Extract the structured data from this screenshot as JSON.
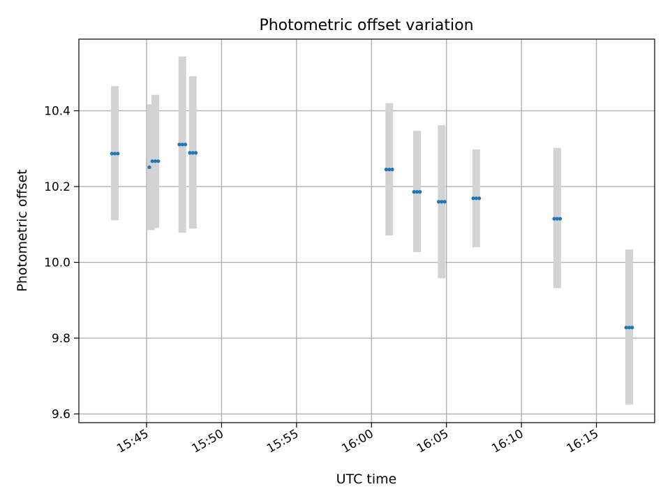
{
  "chart_data": {
    "type": "scatter",
    "title": "Photometric offset variation",
    "xlabel": "UTC time",
    "ylabel": "Photometric offset",
    "grid": true,
    "xlim": [
      "15:40:29",
      "16:18:53"
    ],
    "ylim": [
      9.577,
      10.589
    ],
    "xticks": [
      "15:45",
      "15:50",
      "15:55",
      "16:00",
      "16:05",
      "16:10",
      "16:15"
    ],
    "yticks": [
      9.6,
      9.8,
      10.0,
      10.2,
      10.4
    ],
    "ytick_labels": [
      "9.6",
      "9.8",
      "10.0",
      "10.2",
      "10.4"
    ],
    "colors": {
      "points": "#1f77b4",
      "error_bars": "#d3d3d3",
      "grid": "#b0b0b0"
    },
    "series": [
      {
        "error_bars": [
          {
            "x": "15:42:53",
            "low": 10.111,
            "high": 10.465
          },
          {
            "x": "15:45:17",
            "low": 10.085,
            "high": 10.417
          },
          {
            "x": "15:45:35",
            "low": 10.091,
            "high": 10.442
          },
          {
            "x": "15:47:23",
            "low": 10.078,
            "high": 10.543
          },
          {
            "x": "15:48:05",
            "low": 10.089,
            "high": 10.491
          },
          {
            "x": "16:01:11",
            "low": 10.071,
            "high": 10.42
          },
          {
            "x": "16:03:02",
            "low": 10.027,
            "high": 10.347
          },
          {
            "x": "16:04:41",
            "low": 9.958,
            "high": 10.362
          },
          {
            "x": "16:06:59",
            "low": 10.04,
            "high": 10.298
          },
          {
            "x": "16:12:23",
            "low": 9.932,
            "high": 10.302
          },
          {
            "x": "16:17:11",
            "low": 9.625,
            "high": 10.034
          }
        ],
        "points": [
          {
            "x": "15:42:41",
            "y": 10.287
          },
          {
            "x": "15:42:53",
            "y": 10.287
          },
          {
            "x": "15:43:05",
            "y": 10.287
          },
          {
            "x": "15:45:11",
            "y": 10.251
          },
          {
            "x": "15:45:23",
            "y": 10.267
          },
          {
            "x": "15:45:35",
            "y": 10.267
          },
          {
            "x": "15:45:47",
            "y": 10.267
          },
          {
            "x": "15:47:11",
            "y": 10.311
          },
          {
            "x": "15:47:23",
            "y": 10.311
          },
          {
            "x": "15:47:35",
            "y": 10.311
          },
          {
            "x": "15:47:53",
            "y": 10.289
          },
          {
            "x": "15:48:05",
            "y": 10.289
          },
          {
            "x": "15:48:17",
            "y": 10.289
          },
          {
            "x": "16:00:59",
            "y": 10.245
          },
          {
            "x": "16:01:11",
            "y": 10.245
          },
          {
            "x": "16:01:23",
            "y": 10.245
          },
          {
            "x": "16:02:50",
            "y": 10.186
          },
          {
            "x": "16:03:02",
            "y": 10.186
          },
          {
            "x": "16:03:14",
            "y": 10.186
          },
          {
            "x": "16:04:29",
            "y": 10.16
          },
          {
            "x": "16:04:41",
            "y": 10.16
          },
          {
            "x": "16:04:53",
            "y": 10.16
          },
          {
            "x": "16:06:47",
            "y": 10.169
          },
          {
            "x": "16:06:59",
            "y": 10.169
          },
          {
            "x": "16:07:11",
            "y": 10.169
          },
          {
            "x": "16:12:11",
            "y": 10.115
          },
          {
            "x": "16:12:23",
            "y": 10.115
          },
          {
            "x": "16:12:35",
            "y": 10.115
          },
          {
            "x": "16:16:59",
            "y": 9.828
          },
          {
            "x": "16:17:11",
            "y": 9.828
          },
          {
            "x": "16:17:23",
            "y": 9.828
          }
        ]
      }
    ]
  }
}
